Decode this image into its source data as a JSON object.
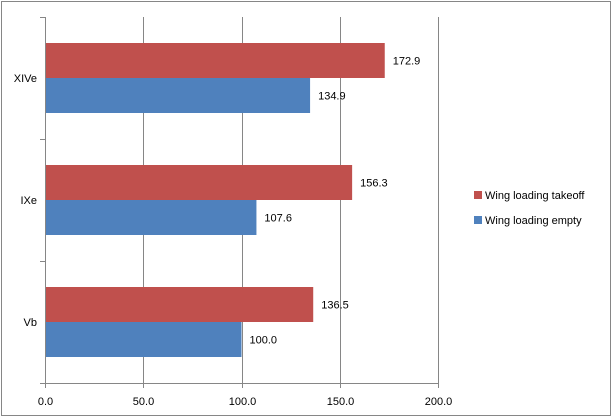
{
  "chart_data": {
    "type": "bar",
    "orientation": "horizontal",
    "title": "",
    "xlabel": "",
    "ylabel": "",
    "categories": [
      "XIVe",
      "IXe",
      "Vb"
    ],
    "series": [
      {
        "name": "Wing loading takeoff",
        "color": "#C0504D",
        "values": [
          172.9,
          156.3,
          136.5
        ],
        "labels": [
          "172.9",
          "156.3",
          "136.5"
        ]
      },
      {
        "name": "Wing loading empty",
        "color": "#4F81BD",
        "values": [
          134.9,
          107.6,
          100.0
        ],
        "labels": [
          "134.9",
          "107.6",
          "100.0"
        ]
      }
    ],
    "xlim": [
      0,
      200
    ],
    "xticks": [
      0,
      50,
      100,
      150,
      200
    ],
    "xtick_labels": [
      "0.0",
      "50.0",
      "100.0",
      "150.0",
      "200.0"
    ],
    "grid": "vertical major gridlines",
    "legend_position": "right"
  }
}
